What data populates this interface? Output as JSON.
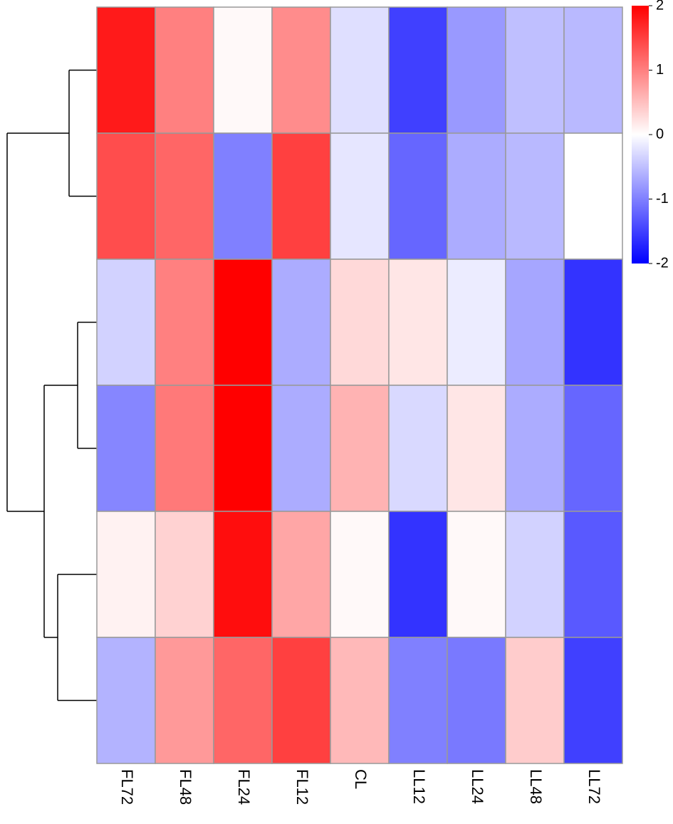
{
  "chart_data": {
    "type": "heatmap",
    "title": "",
    "xlabel": "",
    "ylabel": "",
    "columns": [
      "FL72",
      "FL48",
      "FL24",
      "FL12",
      "CL",
      "LL12",
      "LL24",
      "LL48",
      "LL72"
    ],
    "values": [
      [
        1.8,
        1.0,
        0.05,
        0.9,
        -0.25,
        -1.5,
        -0.8,
        -0.5,
        -0.55
      ],
      [
        1.4,
        1.2,
        -1.0,
        1.5,
        -0.2,
        -1.2,
        -0.65,
        -0.55,
        0.0
      ],
      [
        -0.35,
        1.0,
        2.0,
        -0.65,
        0.3,
        0.2,
        -0.15,
        -0.7,
        -1.6
      ],
      [
        -0.95,
        1.05,
        2.0,
        -0.65,
        0.6,
        -0.3,
        0.2,
        -0.65,
        -1.2
      ],
      [
        0.1,
        0.35,
        1.9,
        0.7,
        0.05,
        -1.6,
        0.05,
        -0.35,
        -1.3
      ],
      [
        -0.6,
        0.8,
        1.2,
        1.5,
        0.55,
        -1.0,
        -1.05,
        0.4,
        -1.5
      ]
    ],
    "color_scale": {
      "min": -2,
      "max": 2,
      "low_color": "#0000ff",
      "mid_color": "#ffffff",
      "high_color": "#ff0000"
    },
    "colorbar_ticks": [
      "2",
      "1",
      "0",
      "-1",
      "-2"
    ],
    "row_dendrogram": true,
    "legend": "right-top",
    "grid_color": "#999999"
  }
}
